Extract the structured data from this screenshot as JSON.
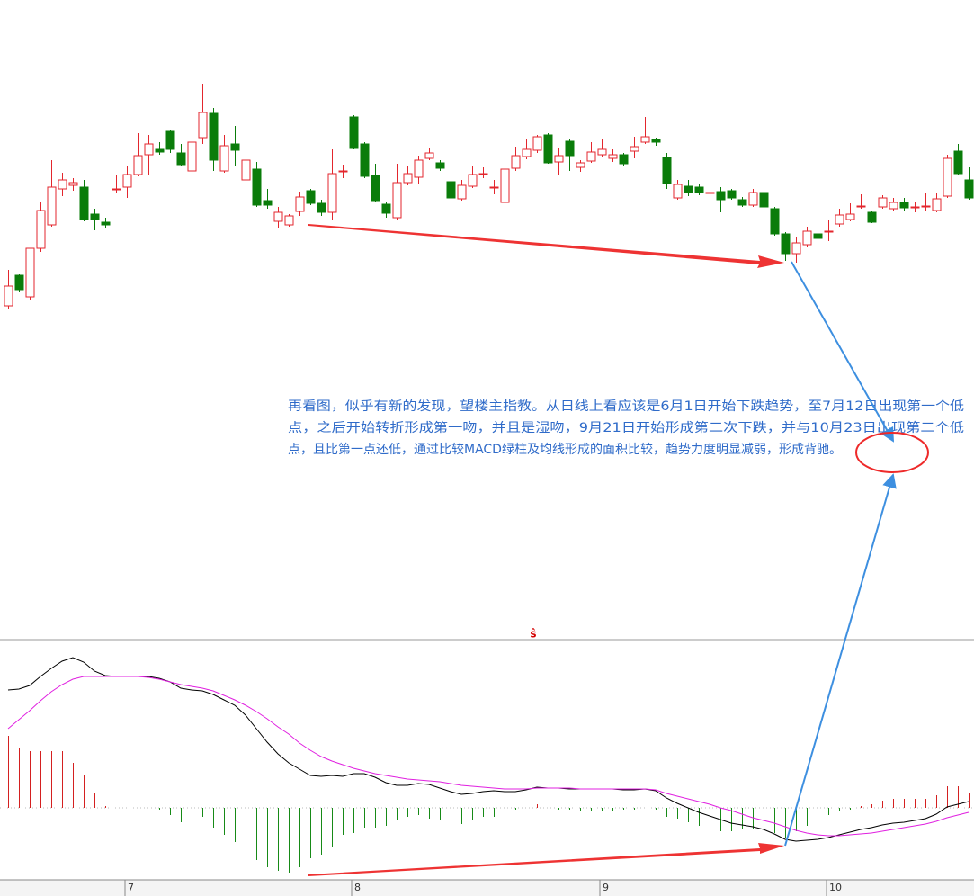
{
  "chart_data": [
    {
      "type": "candlestick",
      "categories": [
        null,
        null,
        null,
        null,
        null,
        null,
        null,
        null,
        null,
        null,
        null,
        "7",
        null,
        null,
        null,
        null,
        null,
        null,
        null,
        null,
        null,
        null,
        null,
        null,
        null,
        null,
        null,
        null,
        null,
        null,
        null,
        null,
        "8",
        null,
        null,
        null,
        null,
        null,
        null,
        null,
        null,
        null,
        null,
        null,
        null,
        null,
        null,
        null,
        null,
        null,
        null,
        null,
        null,
        null,
        null,
        "9",
        null,
        null,
        null,
        null,
        null,
        null,
        null,
        null,
        null,
        null,
        null,
        null,
        null,
        null,
        null,
        null,
        null,
        null,
        null,
        null,
        "10",
        null,
        null,
        null,
        null,
        null,
        null,
        null,
        null,
        null,
        null,
        null,
        null,
        null
      ],
      "open": [
        60,
        94,
        70,
        124,
        150,
        190,
        194,
        192,
        162,
        153,
        190,
        192,
        206,
        228,
        234,
        254,
        230,
        210,
        247,
        274,
        210,
        240,
        200,
        212,
        177,
        154,
        150,
        165,
        188,
        174,
        164,
        210,
        270,
        240,
        205,
        173,
        158,
        197,
        203,
        224,
        219,
        198,
        179,
        193,
        207,
        192,
        175,
        213,
        226,
        233,
        250,
        220,
        243,
        214,
        221,
        228,
        224,
        228,
        232,
        242,
        245,
        225,
        180,
        193,
        192,
        186,
        187,
        188,
        178,
        172,
        186,
        168,
        140,
        118,
        128,
        140,
        143,
        151,
        156,
        171,
        164,
        170,
        168,
        175,
        170,
        171,
        166,
        182,
        232,
        200
      ],
      "high": [
        100,
        95,
        124,
        176,
        222,
        208,
        202,
        200,
        168,
        158,
        205,
        215,
        252,
        250,
        242,
        255,
        240,
        250,
        307,
        280,
        250,
        260,
        224,
        220,
        190,
        170,
        162,
        187,
        190,
        178,
        234,
        217,
        272,
        242,
        218,
        176,
        218,
        215,
        227,
        235,
        222,
        205,
        200,
        215,
        214,
        200,
        217,
        237,
        245,
        250,
        252,
        235,
        245,
        222,
        242,
        245,
        234,
        230,
        248,
        270,
        247,
        230,
        200,
        200,
        195,
        190,
        192,
        190,
        181,
        190,
        188,
        170,
        142,
        137,
        148,
        144,
        155,
        168,
        174,
        184,
        166,
        183,
        180,
        180,
        175,
        185,
        185,
        228,
        240,
        214
      ],
      "low": [
        57,
        75,
        67,
        120,
        148,
        182,
        188,
        154,
        144,
        147,
        185,
        180,
        204,
        206,
        228,
        230,
        215,
        202,
        240,
        210,
        208,
        215,
        198,
        170,
        168,
        146,
        148,
        160,
        172,
        160,
        155,
        202,
        234,
        202,
        175,
        158,
        156,
        194,
        195,
        222,
        210,
        178,
        177,
        191,
        202,
        184,
        174,
        210,
        223,
        230,
        218,
        205,
        210,
        209,
        219,
        225,
        220,
        216,
        224,
        240,
        238,
        190,
        178,
        182,
        183,
        182,
        164,
        178,
        170,
        170,
        168,
        138,
        110,
        108,
        125,
        130,
        132,
        148,
        154,
        168,
        152,
        168,
        166,
        165,
        164,
        165,
        164,
        180,
        205,
        178
      ],
      "close": [
        82,
        78,
        124,
        166,
        192,
        200,
        197,
        156,
        156,
        150,
        190,
        206,
        227,
        240,
        231,
        234,
        217,
        242,
        275,
        222,
        238,
        233,
        222,
        172,
        172,
        164,
        160,
        181,
        174,
        164,
        207,
        210,
        235,
        204,
        177,
        163,
        197,
        207,
        222,
        230,
        213,
        180,
        194,
        206,
        207,
        192,
        212,
        227,
        234,
        248,
        219,
        227,
        227,
        219,
        231,
        234,
        228,
        218,
        237,
        248,
        242,
        196,
        195,
        186,
        186,
        186,
        178,
        180,
        172,
        186,
        170,
        140,
        118,
        130,
        143,
        135,
        143,
        161,
        162,
        171,
        153,
        180,
        175,
        169,
        170,
        171,
        179,
        224,
        207,
        180
      ],
      "up_color": "#e3262d",
      "down_color": "#0a7c0a",
      "ylim": [
        0,
        400
      ],
      "annotation": [
        "再看图，似乎有新的发现，望楼主指教。从日线上看应该是6月1日开始下跌趋势，至7月12日出现第一个低",
        "点，之后开始转折形成第一吻，并且是湿吻，9月21日开始形成第二次下跌，并与10月23日出现第二个低",
        "点，且比第一点还低，通过比较MACD绿柱及均线形成的面积比较，趋势力度明显减弱，形成背驰。"
      ]
    },
    {
      "type": "macd",
      "marker": "ŝ",
      "ylim": [
        -80,
        187
      ],
      "series": [
        {
          "type": "line",
          "color": "#000000",
          "values": [
            131,
            132,
            136,
            146,
            155,
            163,
            167,
            162,
            152,
            147,
            146,
            146,
            146,
            146,
            144,
            140,
            133,
            131,
            130,
            126,
            120,
            114,
            103,
            88,
            73,
            60,
            50,
            43,
            36,
            35,
            36,
            35,
            38,
            38,
            34,
            28,
            25,
            25,
            27,
            26,
            22,
            18,
            15,
            16,
            18,
            19,
            18,
            18,
            20,
            23,
            22,
            22,
            21,
            21,
            21,
            21,
            21,
            20,
            20,
            21,
            19,
            11,
            5,
            0,
            -5,
            -9,
            -13,
            -17,
            -19,
            -21,
            -24,
            -29,
            -35,
            -37,
            -36,
            -35,
            -33,
            -30,
            -27,
            -24,
            -22,
            -19,
            -17,
            -16,
            -14,
            -12,
            -7,
            1,
            4,
            7
          ]
        },
        {
          "type": "line",
          "color": "#e020e0",
          "values": [
            88,
            98,
            108,
            119,
            129,
            137,
            143,
            146,
            146,
            146,
            146,
            146,
            146,
            145,
            143,
            140,
            137,
            135,
            133,
            130,
            125,
            120,
            114,
            107,
            99,
            90,
            82,
            72,
            64,
            57,
            52,
            48,
            44,
            41,
            38,
            36,
            34,
            32,
            31,
            30,
            29,
            27,
            25,
            24,
            23,
            22,
            21,
            21,
            21,
            22,
            22,
            22,
            22,
            21,
            21,
            21,
            21,
            21,
            21,
            21,
            20,
            16,
            13,
            10,
            7,
            4,
            0,
            -3,
            -7,
            -11,
            -14,
            -17,
            -21,
            -25,
            -28,
            -30,
            -31,
            -31,
            -30,
            -29,
            -28,
            -26,
            -24,
            -22,
            -20,
            -18,
            -15,
            -11,
            -8,
            -5
          ]
        },
        {
          "type": "bar",
          "color": "#d42020",
          "negative_color": "#178a17",
          "values": [
            80,
            66,
            63,
            63,
            63,
            63,
            50,
            36,
            16,
            2,
            0,
            0,
            0,
            0,
            -2,
            -8,
            -16,
            -18,
            -10,
            -22,
            -30,
            -38,
            -50,
            -58,
            -66,
            -70,
            -72,
            -66,
            -56,
            -52,
            -44,
            -30,
            -28,
            -22,
            -22,
            -20,
            -14,
            -10,
            -8,
            -12,
            -14,
            -16,
            -18,
            -14,
            -10,
            -10,
            -4,
            -2,
            0,
            4,
            0,
            -2,
            -2,
            -4,
            -4,
            -4,
            -4,
            -2,
            -2,
            0,
            -2,
            -10,
            -12,
            -16,
            -20,
            -20,
            -26,
            -26,
            -24,
            -24,
            -24,
            -28,
            -34,
            -26,
            -20,
            -14,
            -8,
            -4,
            -2,
            2,
            4,
            8,
            10,
            10,
            10,
            10,
            14,
            24,
            24,
            16
          ]
        }
      ]
    }
  ]
}
